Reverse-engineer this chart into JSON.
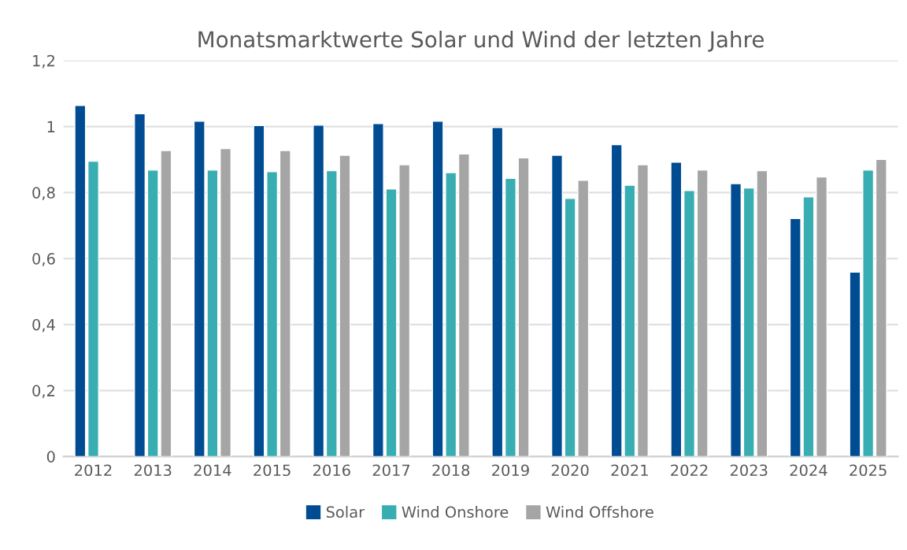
{
  "chart_data": {
    "type": "bar",
    "title": "Monatsmarktwerte Solar und Wind der letzten Jahre",
    "categories": [
      "2012",
      "2013",
      "2014",
      "2015",
      "2016",
      "2017",
      "2018",
      "2019",
      "2020",
      "2021",
      "2022",
      "2023",
      "2024",
      "2025"
    ],
    "series": [
      {
        "name": "Solar",
        "color": "#004c93",
        "values": [
          1.064,
          1.039,
          1.016,
          1.003,
          1.004,
          1.009,
          1.016,
          0.997,
          0.913,
          0.945,
          0.892,
          0.827,
          0.721,
          0.559
        ]
      },
      {
        "name": "Wind Onshore",
        "color": "#38adb2",
        "values": [
          0.895,
          0.868,
          0.868,
          0.863,
          0.866,
          0.811,
          0.86,
          0.843,
          0.782,
          0.822,
          0.806,
          0.814,
          0.787,
          0.868
        ]
      },
      {
        "name": "Wind Offshore",
        "color": "#a5a5a5",
        "values": [
          null,
          0.927,
          0.933,
          0.927,
          0.913,
          0.884,
          0.917,
          0.905,
          0.837,
          0.884,
          0.868,
          0.866,
          0.847,
          0.9
        ]
      }
    ],
    "ylim": [
      0,
      1.2
    ],
    "yticks": [
      0,
      {
        "value": 0.2,
        "label": "0,2"
      },
      {
        "value": 0.4,
        "label": "0,4"
      },
      {
        "value": 0.6,
        "label": "0,6"
      },
      {
        "value": 0.8,
        "label": "0,8"
      },
      1,
      {
        "value": 1.2,
        "label": "1,2"
      }
    ],
    "grid": "y",
    "legend": "bottom"
  }
}
